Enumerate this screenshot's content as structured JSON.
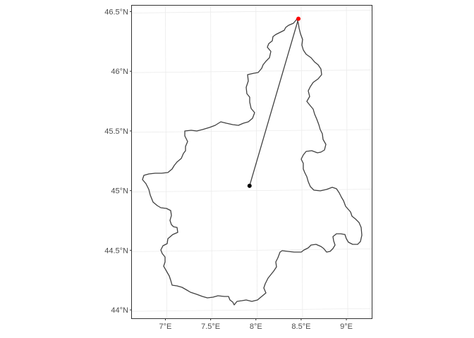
{
  "map": {
    "type": "scatter",
    "projection": "geographic",
    "region_outline": "administrative boundary polygon",
    "x_axis": {
      "ticks": [
        7.0,
        7.5,
        8.0,
        8.5,
        9.0
      ],
      "tick_labels": [
        "7°E",
        "7.5°E",
        "8°E",
        "8.5°E",
        "9°E"
      ],
      "range": [
        6.63,
        9.28
      ]
    },
    "y_axis": {
      "ticks": [
        44.0,
        44.5,
        45.0,
        45.5,
        46.0,
        46.5
      ],
      "tick_labels": [
        "44°N",
        "44.5°N",
        "45°N",
        "45.5°N",
        "46°N",
        "46.5°N"
      ],
      "range": [
        43.93,
        46.55
      ]
    },
    "grid": true,
    "points": [
      {
        "lon": 7.93,
        "lat": 45.04,
        "color": "#000000"
      },
      {
        "lon": 8.47,
        "lat": 46.44,
        "color": "#ff0000"
      }
    ],
    "segment": {
      "from": [
        7.93,
        45.04
      ],
      "to": [
        8.47,
        46.44
      ],
      "color": "#404040"
    },
    "outline_color": "#404040",
    "panel_border_color": "#333333",
    "grid_color": "#ebebeb"
  }
}
